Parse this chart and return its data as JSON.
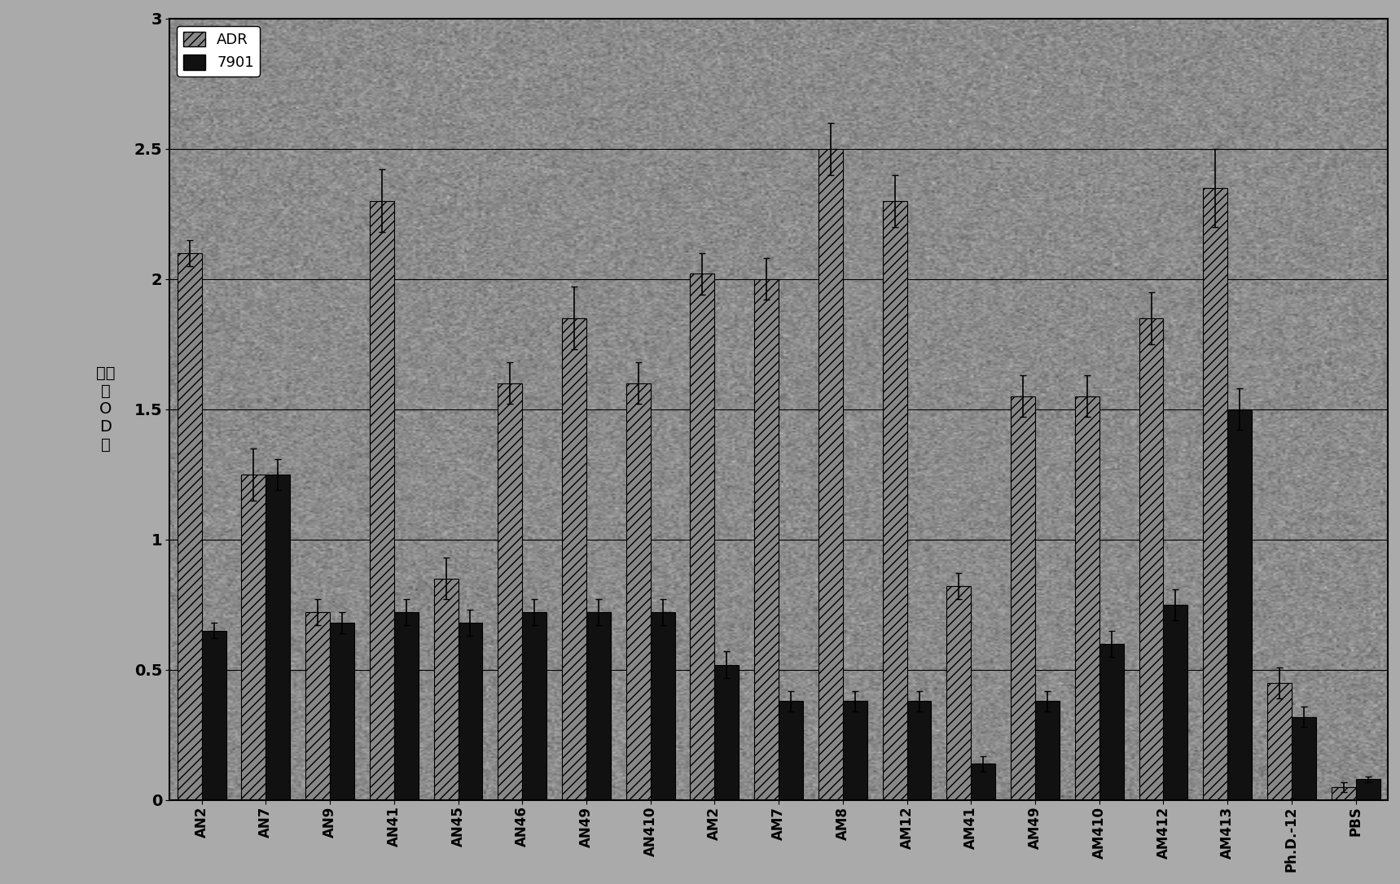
{
  "categories": [
    "AN2",
    "AN7",
    "AN9",
    "AN41",
    "AN45",
    "AN46",
    "AN49",
    "AN410",
    "AM2",
    "AM7",
    "AM8",
    "AM12",
    "AM41",
    "AM49",
    "AM410",
    "AM412",
    "AM413",
    "Ph.D.-12",
    "PBS"
  ],
  "adr_values": [
    2.1,
    1.25,
    0.72,
    2.3,
    0.85,
    1.6,
    1.85,
    1.6,
    2.02,
    2.0,
    2.5,
    2.3,
    0.82,
    1.55,
    1.55,
    1.85,
    2.35,
    0.45,
    0.05
  ],
  "cell7901_values": [
    0.65,
    1.25,
    0.68,
    0.72,
    0.68,
    0.72,
    0.72,
    0.72,
    0.52,
    0.38,
    0.38,
    0.38,
    0.14,
    0.38,
    0.6,
    0.75,
    1.5,
    0.32,
    0.08
  ],
  "adr_errors": [
    0.05,
    0.1,
    0.05,
    0.12,
    0.08,
    0.08,
    0.12,
    0.08,
    0.08,
    0.08,
    0.1,
    0.1,
    0.05,
    0.08,
    0.08,
    0.1,
    0.15,
    0.06,
    0.02
  ],
  "cell7901_errors": [
    0.03,
    0.06,
    0.04,
    0.05,
    0.05,
    0.05,
    0.05,
    0.05,
    0.05,
    0.04,
    0.04,
    0.04,
    0.03,
    0.04,
    0.05,
    0.06,
    0.08,
    0.04,
    0.01
  ],
  "adr_color": "#888888",
  "cell7901_color": "#111111",
  "background_color": "#aaaaaa",
  "plot_bg_color": "#999999",
  "ylim": [
    0,
    3.0
  ],
  "yticks": [
    0,
    0.5,
    1.0,
    1.5,
    2.0,
    2.5,
    3.0
  ],
  "ylabel": "吸光\n度\nO\nD\n値",
  "legend_labels": [
    "ADR",
    "7901"
  ],
  "bar_width": 0.38,
  "figsize": [
    17.19,
    10.86
  ],
  "dpi": 100
}
